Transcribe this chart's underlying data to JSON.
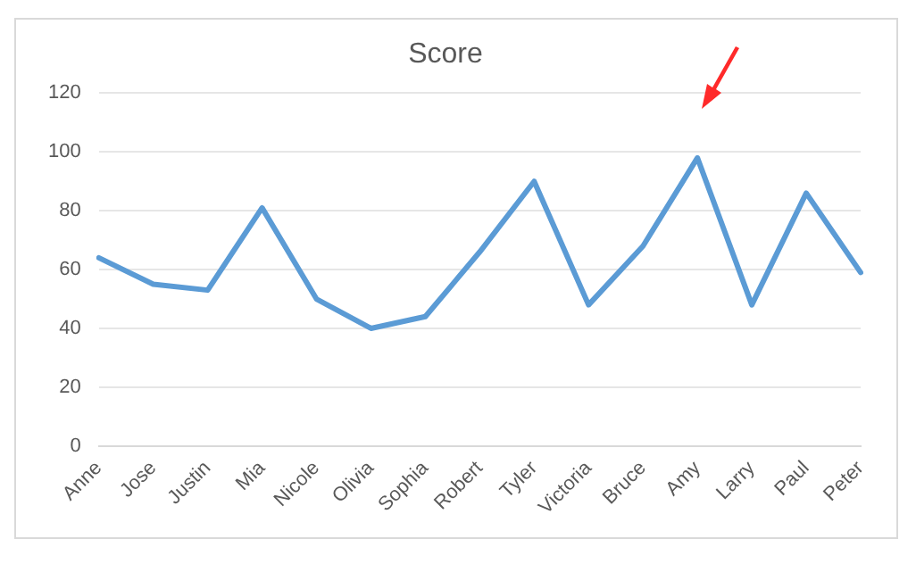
{
  "chart_data": {
    "type": "line",
    "title": "Score",
    "categories": [
      "Anne",
      "Jose",
      "Justin",
      "Mia",
      "Nicole",
      "Olivia",
      "Sophia",
      "Robert",
      "Tyler",
      "Victoria",
      "Bruce",
      "Amy",
      "Larry",
      "Paul",
      "Peter"
    ],
    "series": [
      {
        "color": "#5b9bd5",
        "values": [
          64,
          55,
          53,
          81,
          50,
          40,
          44,
          66,
          90,
          48,
          68,
          98,
          48,
          86,
          59
        ]
      }
    ],
    "ylim": [
      0,
      120
    ],
    "yticks": [
      0,
      20,
      40,
      60,
      80,
      100,
      120
    ],
    "grid": "y",
    "marker": "none",
    "line_style": "solid"
  }
}
